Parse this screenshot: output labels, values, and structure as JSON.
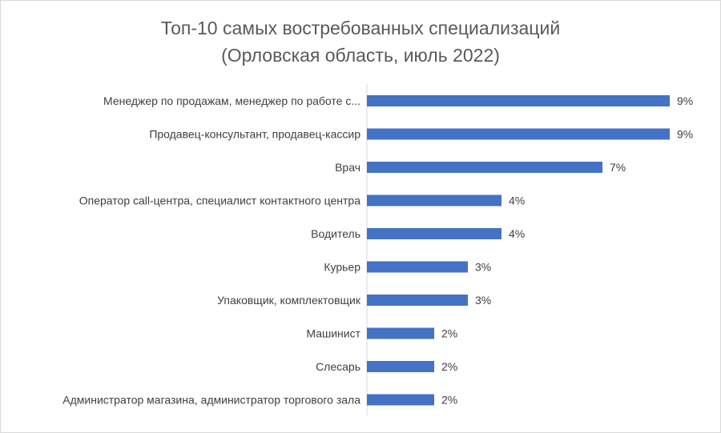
{
  "chart_data": {
    "type": "bar",
    "orientation": "horizontal",
    "title": [
      "Топ-10 самых востребованных специализаций",
      "(Орловская область, июль 2022)"
    ],
    "categories": [
      "Менеджер по продажам, менеджер по работе с...",
      "Продавец-консультант, продавец-кассир",
      "Врач",
      "Оператор call-центра, специалист контактного центра",
      "Водитель",
      "Курьер",
      "Упаковщик, комплектовщик",
      "Машинист",
      "Слесарь",
      "Администратор магазина, администратор торгового зала"
    ],
    "values": [
      9,
      9,
      7,
      4,
      4,
      3,
      3,
      2,
      2,
      2
    ],
    "value_labels": [
      "9%",
      "9%",
      "7%",
      "4%",
      "4%",
      "3%",
      "3%",
      "2%",
      "2%",
      "2%"
    ],
    "xlim": [
      0,
      9
    ],
    "grid": false,
    "legend": "none",
    "bar_color": "#4472c4",
    "axis_color": "#d9d9d9"
  }
}
